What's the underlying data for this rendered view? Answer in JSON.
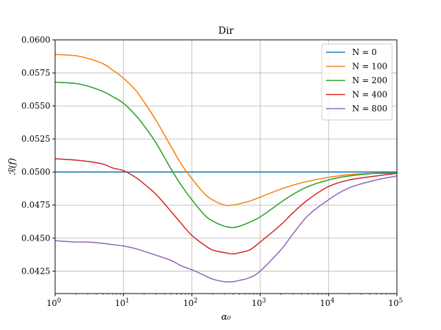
{
  "chart_data": {
    "type": "line",
    "title": "Dir",
    "xlabel": "α₀",
    "ylabel": "ℛ(f)",
    "xscale": "log",
    "xlim": [
      1,
      100000
    ],
    "ylim": [
      0.0408,
      0.06
    ],
    "grid": true,
    "legend_position": "top-right",
    "xticks": [
      {
        "value": 1,
        "base": "10",
        "exp": "0"
      },
      {
        "value": 10,
        "base": "10",
        "exp": "1"
      },
      {
        "value": 100,
        "base": "10",
        "exp": "2"
      },
      {
        "value": 1000,
        "base": "10",
        "exp": "3"
      },
      {
        "value": 10000,
        "base": "10",
        "exp": "4"
      },
      {
        "value": 100000,
        "base": "10",
        "exp": "5"
      }
    ],
    "yticks": [
      {
        "value": 0.0425,
        "label": "0.0425"
      },
      {
        "value": 0.045,
        "label": "0.0450"
      },
      {
        "value": 0.0475,
        "label": "0.0475"
      },
      {
        "value": 0.05,
        "label": "0.0500"
      },
      {
        "value": 0.0525,
        "label": "0.0525"
      },
      {
        "value": 0.055,
        "label": "0.0550"
      },
      {
        "value": 0.0575,
        "label": "0.0575"
      },
      {
        "value": 0.06,
        "label": "0.0600"
      }
    ],
    "series": [
      {
        "name": "N = 0",
        "color": "#1f77b4",
        "x": [
          1,
          3,
          10,
          30,
          100,
          300,
          1000,
          3000,
          10000,
          30000,
          100000
        ],
        "y": [
          0.05,
          0.05,
          0.05,
          0.05,
          0.05,
          0.05,
          0.05,
          0.05,
          0.05,
          0.05,
          0.05
        ]
      },
      {
        "name": "N = 100",
        "color": "#ff7f0e",
        "x": [
          1,
          2,
          3,
          5,
          7,
          10,
          15,
          20,
          30,
          50,
          70,
          100,
          150,
          200,
          300,
          400,
          500,
          700,
          1000,
          2000,
          3000,
          5000,
          10000,
          20000,
          50000,
          100000
        ],
        "y": [
          0.0589,
          0.0588,
          0.0586,
          0.0582,
          0.0577,
          0.0571,
          0.0562,
          0.0553,
          0.0539,
          0.0519,
          0.0506,
          0.0495,
          0.0484,
          0.0479,
          0.0475,
          0.0475,
          0.0476,
          0.0478,
          0.0481,
          0.0487,
          0.049,
          0.0493,
          0.0496,
          0.0498,
          0.0499,
          0.0499
        ]
      },
      {
        "name": "N = 200",
        "color": "#2ca02c",
        "x": [
          1,
          2,
          3,
          5,
          7,
          10,
          15,
          20,
          30,
          50,
          70,
          100,
          150,
          200,
          300,
          400,
          500,
          700,
          1000,
          2000,
          3000,
          5000,
          10000,
          20000,
          50000,
          100000
        ],
        "y": [
          0.0568,
          0.0567,
          0.0565,
          0.0561,
          0.0557,
          0.0552,
          0.0543,
          0.0535,
          0.0522,
          0.0502,
          0.049,
          0.0479,
          0.0468,
          0.0463,
          0.0459,
          0.0458,
          0.0459,
          0.0462,
          0.0466,
          0.0477,
          0.0483,
          0.0489,
          0.0494,
          0.0497,
          0.0499,
          0.0499
        ]
      },
      {
        "name": "N = 400",
        "color": "#d62728",
        "x": [
          1,
          2,
          3,
          5,
          7,
          10,
          15,
          20,
          30,
          50,
          70,
          100,
          150,
          200,
          300,
          400,
          500,
          700,
          1000,
          2000,
          3000,
          5000,
          10000,
          20000,
          50000,
          100000
        ],
        "y": [
          0.051,
          0.0509,
          0.0508,
          0.0506,
          0.0503,
          0.0501,
          0.0496,
          0.0491,
          0.0483,
          0.047,
          0.0461,
          0.0452,
          0.0445,
          0.0441,
          0.0439,
          0.0438,
          0.0439,
          0.0441,
          0.0447,
          0.046,
          0.0469,
          0.0479,
          0.0489,
          0.0494,
          0.0497,
          0.0499
        ]
      },
      {
        "name": "N = 800",
        "color": "#9467bd",
        "x": [
          1,
          2,
          3,
          5,
          7,
          10,
          15,
          20,
          30,
          50,
          70,
          100,
          150,
          200,
          300,
          400,
          500,
          700,
          1000,
          2000,
          3000,
          5000,
          10000,
          20000,
          50000,
          100000
        ],
        "y": [
          0.0448,
          0.0447,
          0.0447,
          0.0446,
          0.0445,
          0.0444,
          0.0442,
          0.044,
          0.0437,
          0.0433,
          0.0429,
          0.0426,
          0.0422,
          0.0419,
          0.0417,
          0.0417,
          0.0418,
          0.042,
          0.0425,
          0.0441,
          0.0453,
          0.0467,
          0.0479,
          0.0488,
          0.0494,
          0.0497
        ]
      }
    ]
  }
}
